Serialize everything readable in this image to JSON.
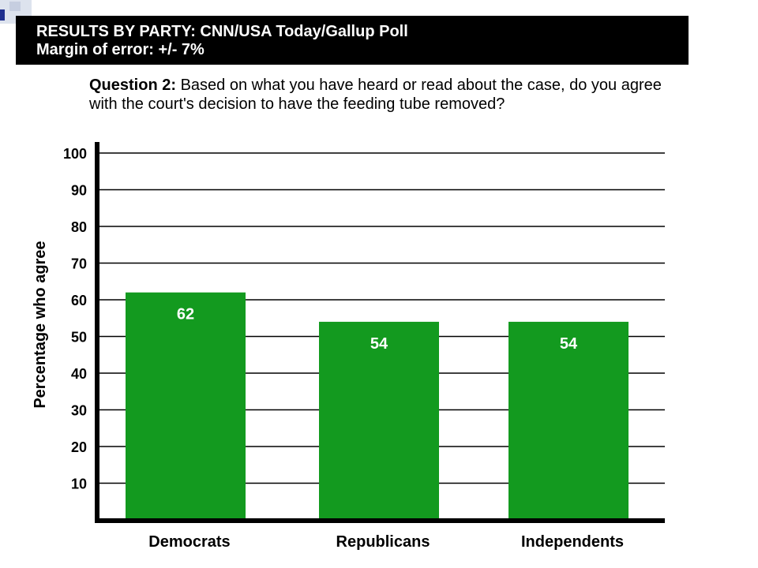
{
  "header": {
    "title": "RESULTS BY PARTY: CNN/USA Today/Gallup Poll",
    "subtitle": "Margin of error: +/- 7%"
  },
  "question": {
    "label": "Question 2:",
    "text": " Based on what you have heard or read about the case, do you agree with the court's decision to have the feeding tube removed?"
  },
  "colors": {
    "bar": "#139a1f",
    "header_background": "#000000",
    "gridline": "#000000"
  },
  "chart_data": {
    "type": "bar",
    "categories": [
      "Democrats",
      "Republicans",
      "Independents"
    ],
    "values": [
      62,
      54,
      54
    ],
    "value_labels": [
      "62",
      "54",
      "54"
    ],
    "ylabel": "Percentage who agree",
    "xlabel": "",
    "ylim": [
      0,
      100
    ],
    "yticks": [
      10,
      20,
      30,
      40,
      50,
      60,
      70,
      80,
      90,
      100
    ],
    "ytick_labels": [
      "10",
      "20",
      "30",
      "40",
      "50",
      "60",
      "70",
      "80",
      "90",
      "100"
    ],
    "grid": true,
    "legend": "none"
  }
}
